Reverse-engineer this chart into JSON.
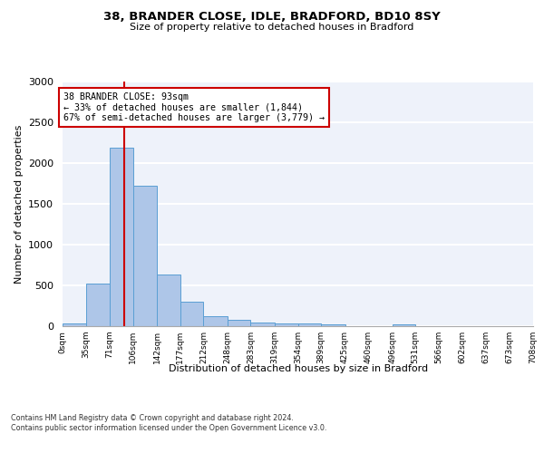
{
  "title": "38, BRANDER CLOSE, IDLE, BRADFORD, BD10 8SY",
  "subtitle": "Size of property relative to detached houses in Bradford",
  "xlabel": "Distribution of detached houses by size in Bradford",
  "ylabel": "Number of detached properties",
  "bar_heights": [
    30,
    520,
    2190,
    1720,
    630,
    295,
    125,
    75,
    40,
    35,
    35,
    25,
    0,
    0,
    25,
    0,
    0,
    0,
    0,
    0
  ],
  "bin_edges": [
    0,
    35,
    71,
    106,
    142,
    177,
    212,
    248,
    283,
    319,
    354,
    389,
    425,
    460,
    496,
    531,
    566,
    602,
    637,
    673,
    708
  ],
  "bar_color": "#aec6e8",
  "bar_edge_color": "#5a9fd4",
  "vline_x": 93,
  "vline_color": "#cc0000",
  "annotation_text": "38 BRANDER CLOSE: 93sqm\n← 33% of detached houses are smaller (1,844)\n67% of semi-detached houses are larger (3,779) →",
  "annotation_box_color": "#cc0000",
  "ylim": [
    0,
    3000
  ],
  "yticks": [
    0,
    500,
    1000,
    1500,
    2000,
    2500,
    3000
  ],
  "background_color": "#eef2fa",
  "grid_color": "#ffffff",
  "footer_text": "Contains HM Land Registry data © Crown copyright and database right 2024.\nContains public sector information licensed under the Open Government Licence v3.0.",
  "tick_labels": [
    "0sqm",
    "35sqm",
    "71sqm",
    "106sqm",
    "142sqm",
    "177sqm",
    "212sqm",
    "248sqm",
    "283sqm",
    "319sqm",
    "354sqm",
    "389sqm",
    "425sqm",
    "460sqm",
    "496sqm",
    "531sqm",
    "566sqm",
    "602sqm",
    "637sqm",
    "673sqm",
    "708sqm"
  ]
}
